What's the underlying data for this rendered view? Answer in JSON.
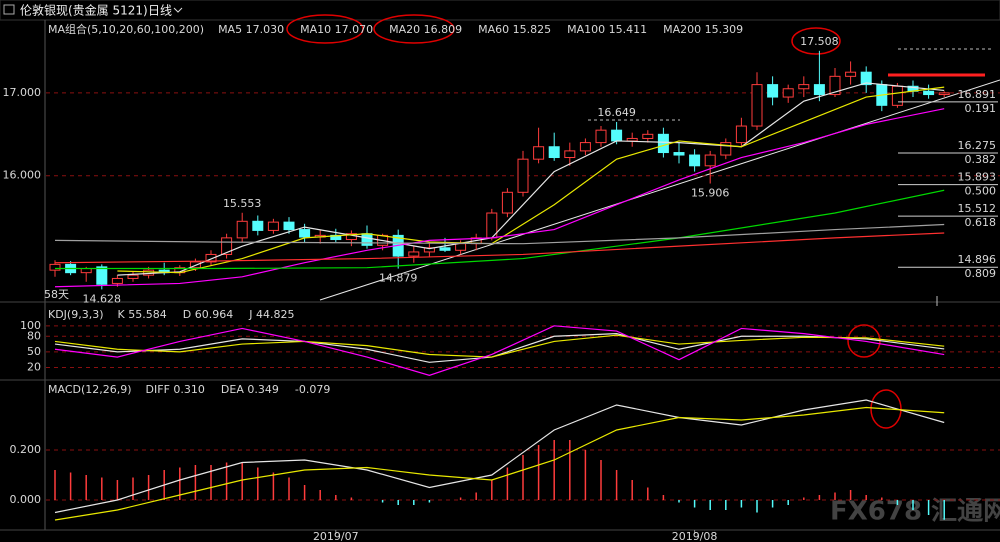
{
  "header": {
    "title": "伦敦银现(贵金属 5121)",
    "period": "日线"
  },
  "watermark": "FX678 汇通网",
  "chart_data": [
    {
      "type": "candlestick",
      "title": "MA组合(5,10,20,60,100,200)",
      "categories": [
        null,
        null,
        null,
        null,
        null,
        null,
        null,
        null,
        null,
        null,
        null,
        null,
        null,
        null,
        null,
        null,
        null,
        null,
        "2019/07",
        null,
        null,
        null,
        null,
        null,
        null,
        null,
        null,
        null,
        null,
        null,
        null,
        null,
        null,
        null,
        null,
        null,
        null,
        null,
        null,
        null,
        null,
        "2019/08",
        null,
        null,
        null,
        null,
        null,
        null,
        null,
        null,
        null,
        null,
        null,
        null,
        null,
        null,
        null,
        null
      ],
      "open": [
        14.86,
        14.93,
        14.83,
        14.9,
        14.7,
        14.76,
        14.8,
        14.86,
        14.83,
        14.89,
        14.96,
        15.05,
        15.25,
        15.45,
        15.34,
        15.44,
        15.35,
        15.26,
        15.28,
        15.23,
        15.3,
        15.16,
        15.28,
        15.03,
        15.08,
        15.13,
        15.1,
        15.18,
        15.25,
        15.55,
        15.8,
        16.2,
        16.35,
        16.22,
        16.3,
        16.4,
        16.55,
        16.42,
        16.45,
        16.5,
        16.28,
        16.25,
        16.12,
        16.25,
        16.4,
        16.6,
        17.1,
        16.95,
        17.05,
        17.1,
        16.98,
        17.2,
        17.25,
        17.1,
        16.85,
        17.08,
        17.02,
        16.98
      ],
      "high": [
        14.98,
        14.97,
        14.9,
        14.93,
        14.8,
        14.85,
        14.9,
        14.95,
        14.92,
        15.0,
        15.1,
        15.3,
        15.553,
        15.52,
        15.48,
        15.5,
        15.42,
        15.35,
        15.36,
        15.34,
        15.4,
        15.3,
        15.35,
        15.15,
        15.2,
        15.25,
        15.22,
        15.3,
        15.6,
        15.85,
        16.3,
        16.58,
        16.52,
        16.4,
        16.45,
        16.6,
        16.649,
        16.52,
        16.55,
        16.58,
        16.4,
        16.32,
        16.3,
        16.45,
        16.7,
        17.25,
        17.2,
        17.1,
        17.2,
        17.508,
        17.3,
        17.38,
        17.32,
        17.15,
        17.12,
        17.15,
        17.1,
        17.02
      ],
      "low": [
        14.78,
        14.8,
        14.72,
        14.628,
        14.66,
        14.72,
        14.76,
        14.8,
        14.79,
        14.85,
        14.92,
        15.0,
        15.2,
        15.28,
        15.3,
        15.3,
        15.2,
        15.18,
        15.2,
        15.15,
        15.12,
        15.1,
        14.879,
        14.95,
        15.02,
        15.08,
        15.05,
        15.1,
        15.22,
        15.5,
        15.75,
        16.15,
        16.18,
        16.12,
        16.25,
        16.35,
        16.38,
        16.35,
        16.4,
        16.22,
        16.15,
        16.05,
        15.906,
        16.2,
        16.35,
        16.55,
        16.85,
        16.88,
        16.95,
        16.9,
        16.95,
        17.1,
        17.0,
        16.78,
        16.82,
        16.95,
        16.93,
        16.95
      ],
      "close": [
        14.93,
        14.83,
        14.88,
        14.69,
        14.76,
        14.8,
        14.86,
        14.83,
        14.89,
        14.96,
        15.05,
        15.25,
        15.45,
        15.34,
        15.44,
        15.35,
        15.26,
        15.28,
        15.23,
        15.3,
        15.16,
        15.28,
        15.03,
        15.08,
        15.13,
        15.1,
        15.18,
        15.25,
        15.55,
        15.8,
        16.2,
        16.35,
        16.22,
        16.3,
        16.4,
        16.55,
        16.42,
        16.45,
        16.5,
        16.28,
        16.25,
        16.12,
        16.25,
        16.4,
        16.6,
        17.1,
        16.95,
        17.05,
        17.1,
        16.98,
        17.2,
        17.25,
        17.1,
        16.85,
        17.08,
        17.02,
        16.98,
        17.0
      ],
      "up_color": "#ff3c3c",
      "down_color": "#54fcfc",
      "ylim": [
        14.5,
        17.88
      ],
      "yticks": [
        {
          "value": 16,
          "label": "16.000"
        },
        {
          "value": 17,
          "label": "17.000"
        }
      ],
      "grid": true,
      "series": [
        {
          "name": "MA5",
          "color": "#e6e6e6",
          "current": {
            "value": 17.03,
            "label": "17.030"
          },
          "x": [
            4,
            8,
            12,
            16,
            20,
            24,
            28,
            32,
            36,
            40,
            44,
            48,
            52,
            57
          ],
          "values": [
            14.8,
            14.84,
            15.15,
            15.38,
            15.25,
            15.12,
            15.25,
            16.05,
            16.42,
            16.4,
            16.35,
            16.9,
            17.12,
            17.03
          ]
        },
        {
          "name": "MA10",
          "color": "#e8e800",
          "current": {
            "value": 17.07,
            "label": "17.070"
          },
          "x": [
            4,
            8,
            12,
            16,
            20,
            24,
            28,
            32,
            36,
            40,
            44,
            48,
            52,
            57
          ],
          "values": [
            14.85,
            14.83,
            15.0,
            15.25,
            15.3,
            15.2,
            15.18,
            15.65,
            16.2,
            16.42,
            16.35,
            16.65,
            16.95,
            17.07
          ]
        },
        {
          "name": "MA20",
          "color": "#ff00ff",
          "current": 16.809,
          "x": [
            0,
            8,
            12,
            16,
            20,
            24,
            28,
            32,
            36,
            40,
            44,
            48,
            52,
            57
          ],
          "values": [
            14.66,
            14.7,
            14.78,
            14.95,
            15.1,
            15.22,
            15.25,
            15.35,
            15.65,
            15.95,
            16.22,
            16.4,
            16.62,
            16.809
          ]
        },
        {
          "name": "MA60",
          "color": "#00d800",
          "current": 15.825,
          "x": [
            0,
            10,
            20,
            30,
            40,
            50,
            57
          ],
          "values": [
            14.88,
            14.88,
            14.89,
            15.0,
            15.25,
            15.55,
            15.825
          ]
        },
        {
          "name": "MA100",
          "color": "#a0a0a0",
          "current": 15.411,
          "x": [
            0,
            10,
            20,
            30,
            40,
            50,
            57
          ],
          "values": [
            15.22,
            15.2,
            15.19,
            15.18,
            15.25,
            15.35,
            15.411
          ]
        },
        {
          "name": "MA200",
          "color": "#ff3030",
          "current": 15.309,
          "x": [
            0,
            10,
            20,
            30,
            40,
            50,
            57
          ],
          "values": [
            14.95,
            14.97,
            15.0,
            15.05,
            15.15,
            15.25,
            15.309
          ]
        }
      ],
      "annotations": [
        {
          "index": 49,
          "value": 17.508,
          "color": "#ff3c3c",
          "position": "above"
        },
        {
          "index": 36,
          "value": 16.649,
          "color": "#ff3c3c",
          "position": "above"
        },
        {
          "index": 12,
          "value": 15.553,
          "color": "#ff3c3c",
          "position": "above"
        },
        {
          "index": 42,
          "value": 15.906,
          "color": "#54fcfc",
          "position": "below"
        },
        {
          "index": 22,
          "value": 14.879,
          "color": "#54fcfc",
          "position": "below"
        },
        {
          "index": 3,
          "value": 14.628,
          "color": "#54fcfc",
          "position": "below"
        }
      ],
      "range_label": "58天",
      "levels": [
        {
          "value": 16.891,
          "ratio": 0.191
        },
        {
          "value": 16.275,
          "ratio": 0.382
        },
        {
          "value": 15.893,
          "ratio": {
            "value": 0.5,
            "label": "0.500"
          }
        },
        {
          "value": 15.512,
          "ratio": 0.618
        },
        {
          "value": 14.896,
          "ratio": 0.809
        }
      ]
    },
    {
      "type": "line",
      "title": "KDJ(9,3,3)",
      "ylim": [
        -4,
        140
      ],
      "yticks": [
        20,
        50,
        80,
        100
      ],
      "grid": true,
      "series": [
        {
          "name": "K",
          "color": "#e6e6e6",
          "current": 55.584,
          "x": [
            0,
            4,
            8,
            12,
            16,
            20,
            24,
            28,
            32,
            36,
            40,
            44,
            48,
            52,
            57
          ],
          "values": [
            65,
            50,
            55,
            75,
            70,
            55,
            30,
            40,
            80,
            85,
            55,
            80,
            80,
            75,
            55.584
          ]
        },
        {
          "name": "D",
          "color": "#e8e800",
          "current": 60.964,
          "x": [
            0,
            4,
            8,
            12,
            16,
            20,
            24,
            28,
            32,
            36,
            40,
            44,
            48,
            52,
            57
          ],
          "values": [
            70,
            55,
            50,
            65,
            70,
            62,
            45,
            40,
            70,
            82,
            65,
            72,
            78,
            77,
            60.964
          ]
        },
        {
          "name": "J",
          "color": "#ff00ff",
          "current": 44.825,
          "x": [
            0,
            4,
            8,
            12,
            16,
            20,
            24,
            28,
            32,
            36,
            40,
            44,
            48,
            52,
            57
          ],
          "values": [
            55,
            40,
            70,
            95,
            70,
            40,
            5,
            45,
            100,
            90,
            35,
            95,
            85,
            70,
            44.825
          ]
        }
      ]
    },
    {
      "type": "macd",
      "title": "MACD(12,26,9)",
      "ylim": [
        -0.12,
        0.48
      ],
      "yticks": [
        {
          "value": 0,
          "label": "0.000"
        },
        {
          "value": 0.2,
          "label": "0.200"
        }
      ],
      "grid": true,
      "series": [
        {
          "name": "DIFF",
          "color": "#e6e6e6",
          "current": {
            "value": 0.31,
            "label": "0.310"
          },
          "x": [
            0,
            4,
            8,
            12,
            16,
            20,
            24,
            28,
            32,
            36,
            40,
            44,
            48,
            52,
            57
          ],
          "values": [
            -0.05,
            0.0,
            0.08,
            0.15,
            0.16,
            0.12,
            0.05,
            0.1,
            0.28,
            0.38,
            0.33,
            0.3,
            0.36,
            0.4,
            0.31
          ]
        },
        {
          "name": "DEA",
          "color": "#e8e800",
          "current": 0.349,
          "x": [
            0,
            4,
            8,
            12,
            16,
            20,
            24,
            28,
            32,
            36,
            40,
            44,
            48,
            52,
            57
          ],
          "values": [
            -0.08,
            -0.04,
            0.02,
            0.08,
            0.12,
            0.13,
            0.1,
            0.08,
            0.16,
            0.28,
            0.33,
            0.32,
            0.34,
            0.37,
            0.349
          ]
        }
      ],
      "histogram": {
        "up_color": "#ff3c3c",
        "down_color": "#54fcfc",
        "current": -0.079,
        "values": [
          0.12,
          0.11,
          0.1,
          0.09,
          0.08,
          0.09,
          0.1,
          0.12,
          0.13,
          0.14,
          0.14,
          0.15,
          0.15,
          0.13,
          0.11,
          0.09,
          0.06,
          0.04,
          0.02,
          0.01,
          0.0,
          -0.01,
          -0.02,
          -0.02,
          -0.01,
          0.0,
          0.01,
          0.03,
          0.08,
          0.13,
          0.18,
          0.22,
          0.24,
          0.24,
          0.2,
          0.16,
          0.12,
          0.08,
          0.05,
          0.02,
          -0.01,
          -0.03,
          -0.04,
          -0.04,
          -0.03,
          -0.05,
          -0.03,
          -0.02,
          0.01,
          0.02,
          0.03,
          0.04,
          0.02,
          0.01,
          -0.02,
          -0.04,
          -0.06,
          -0.079
        ]
      }
    }
  ]
}
